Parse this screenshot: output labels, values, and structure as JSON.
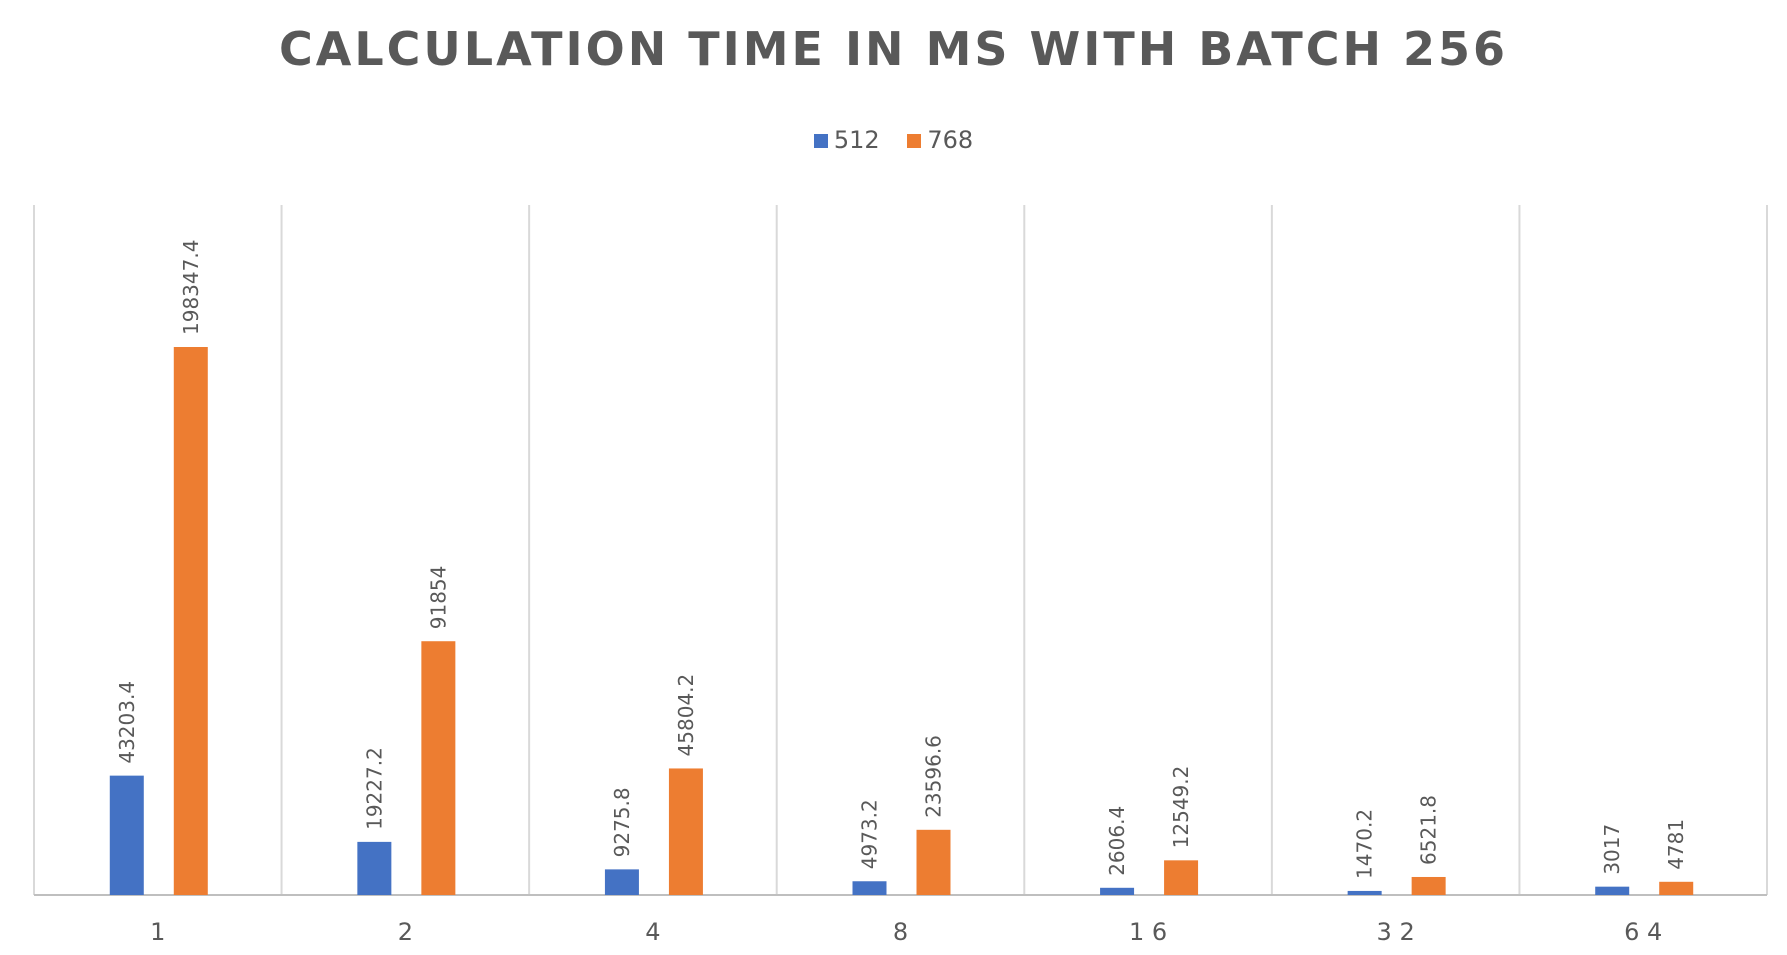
{
  "chart_data": {
    "type": "bar",
    "title": "CALCULATION TIME IN MS WITH BATCH 256",
    "categories": [
      "1",
      "2",
      "4",
      "8",
      "1 6",
      "3 2",
      "6 4"
    ],
    "series": [
      {
        "name": "512",
        "color": "#4472C4",
        "values": [
          43203.4,
          19227.2,
          9275.8,
          4973.2,
          2606.4,
          1470.2,
          3017
        ],
        "labels": [
          "43203.4",
          "19227.2",
          "9275.8",
          "4973.2",
          "2606.4",
          "1470.2",
          "3017"
        ]
      },
      {
        "name": "768",
        "color": "#ED7D31",
        "values": [
          198347.4,
          91854,
          45804.2,
          23596.6,
          12549.2,
          6521.8,
          4781
        ],
        "labels": [
          "198347.4",
          "91854",
          "45804.2",
          "23596.6",
          "12549.2",
          "6521.8",
          "4781"
        ]
      }
    ],
    "xlabel": "",
    "ylabel": "",
    "ylim": [
      0,
      250000
    ],
    "grid": "vertical",
    "legend_position": "top-center",
    "data_labels": "rotated"
  }
}
